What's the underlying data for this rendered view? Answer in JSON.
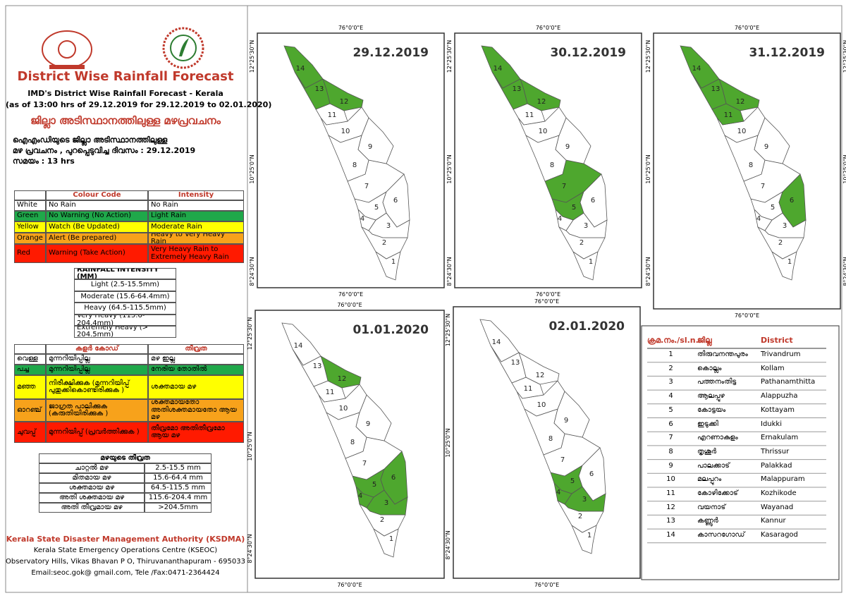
{
  "header": {
    "title": "District Wise Rainfall Forecast",
    "line1": "IMD's District Wise Rainfall Forecast - Kerala",
    "line2": "(as of 13:00 hrs of 29.12.2019  for 29.12.2019  to 02.01.2020)",
    "ml_title": "ജില്ലാ അടിസ്ഥാനത്തിലുള്ള മഴപ്രവചനം",
    "ml_para": [
      "ഐഎംഡിയുടെ ജില്ലാ   അടിസ്ഥാനത്തിലുള്ള",
      "മഴ പ്രവചനം , പുറപ്പെടുവിച്ച   ദിവസം : 29.12.2019",
      "സമയം : 13  hrs"
    ]
  },
  "colour_code": {
    "headers": [
      "Colour Code",
      "Intensity"
    ],
    "rows": [
      {
        "color": "#ffffff",
        "cells": [
          "White",
          "No Rain",
          "No Rain"
        ]
      },
      {
        "color": "#1fa84a",
        "cells": [
          "Green",
          "No Warning (No Action)",
          "Light Rain"
        ]
      },
      {
        "color": "#ffff00",
        "cells": [
          "Yellow",
          "Watch (Be Updated)",
          "Moderate Rain"
        ]
      },
      {
        "color": "#f7a21b",
        "cells": [
          "Orange",
          "Alert (Be prepared)",
          "Heavy to Very Heavy Rain"
        ]
      },
      {
        "color": "#ff1a00",
        "cells": [
          "Red",
          "Warning (Take Action)",
          "Very Heavy Rain to Extremely Heavy Rain"
        ]
      }
    ]
  },
  "rainfall_intensity": {
    "title": "RAINFALL INTENSITY (MM)",
    "rows": [
      "Light (2.5-15.5mm)",
      "Moderate (15.6-64.4mm)",
      "Heavy (64.5-115.5mm)",
      "Very Heavy (115.6-204.4mm)",
      "Extremely Heavy (> 204.5mm)"
    ]
  },
  "ml_colour_code": {
    "headers": [
      "കളർ കോഡ്",
      "തീവ്രത"
    ],
    "rows": [
      {
        "color": "#ffffff",
        "cells": [
          "വെള്ള",
          "മുന്നറിയിപ്പില്ല",
          "മഴ ഇല്ല"
        ]
      },
      {
        "color": "#1fa84a",
        "cells": [
          "പച്ച",
          "മുന്നറിയിപ്പില്ല",
          "നേരിയ തോതിൽ"
        ]
      },
      {
        "color": "#ffff00",
        "cells": [
          "മഞ്ഞ",
          "നിരീക്ഷിക്കുക (മുന്നറിയിപ്പ് പുതുക്കികൊണ്ടിരിക്കുക )",
          "ശക്തമായ മഴ"
        ]
      },
      {
        "color": "#f7a21b",
        "cells": [
          "ഓറഞ്ച്",
          "ജാഗ്രത പാലിക്കുക (കരുതിയിരിക്കുക )",
          "ശക്തമായതോ അതിശക്തമായതോ ആയ മഴ"
        ]
      },
      {
        "color": "#ff1a00",
        "cells": [
          "ചുവപ്പ്",
          "മുന്നറിയിപ്പ് (പ്രവർത്തിക്കുക )",
          "തീവ്രമോ അതിതീവ്രമോ ആയ മഴ"
        ]
      }
    ]
  },
  "ml_intensity": {
    "title": "മഴയുടെ തീവ്രത",
    "rows": [
      [
        "ചാറ്റൽ മഴ",
        "2.5-15.5 mm"
      ],
      [
        "മിതമായ മഴ",
        "15.6-64.4 mm"
      ],
      [
        "ശക്തമായ മഴ",
        "64.5-115.5 mm"
      ],
      [
        "അതി ശക്തമായ മഴ",
        "115.6-204.4 mm"
      ],
      [
        "അതി തീവ്രമായ മഴ",
        ">204.5mm"
      ]
    ]
  },
  "footer": {
    "org": "Kerala State Disaster Management Authority (KSDMA)",
    "lines": [
      "Kerala State Emergency Operations Centre (KSEOC)",
      "Observatory Hills, Vikas Bhavan P O, Thiruvananthapuram - 695033",
      "Email:seoc.gok@ gmail.com, Tele /Fax:0471-2364424"
    ]
  },
  "map_axes": {
    "lon": "76°0'0\"E",
    "lat": [
      "12°25'30\"N",
      "10°25'0\"N",
      "8°24'30\"N"
    ]
  },
  "map_color": "#4ea72e",
  "maps": [
    {
      "date": "29.12.2019",
      "green": [
        14,
        13,
        12
      ]
    },
    {
      "date": "30.12.2019",
      "green": [
        14,
        13,
        12,
        7,
        5
      ]
    },
    {
      "date": "31.12.2019",
      "green": [
        14,
        13,
        12,
        11,
        6
      ]
    },
    {
      "date": "01.01.2020",
      "green": [
        12,
        6,
        5,
        4,
        3
      ]
    },
    {
      "date": "02.01.2020",
      "green": [
        5,
        4,
        3
      ]
    }
  ],
  "district_table": {
    "headers": [
      "ക്രമ.നം./sl.n.",
      "ജില്ല",
      "District"
    ],
    "rows": [
      [
        "1",
        "തിരുവനന്തപുരം",
        "Trivandrum"
      ],
      [
        "2",
        "കൊല്ലം",
        "Kollam"
      ],
      [
        "3",
        "പത്തനംതിട്ട",
        "Pathanamthitta"
      ],
      [
        "4",
        "ആലപ്പുഴ",
        "Alappuzha"
      ],
      [
        "5",
        "കോട്ടയം",
        "Kottayam"
      ],
      [
        "6",
        "ഇടുക്കി",
        "Idukki"
      ],
      [
        "7",
        "എറണാകുളം",
        "Ernakulam"
      ],
      [
        "8",
        "തൃശൂർ",
        "Thrissur"
      ],
      [
        "9",
        "പാലക്കാട്",
        "Palakkad"
      ],
      [
        "10",
        "മലപ്പുറം",
        "Malappuram"
      ],
      [
        "11",
        "കോഴിക്കോട്",
        "Kozhikode"
      ],
      [
        "12",
        "വയനാട്",
        "Wayanad"
      ],
      [
        "13",
        "കണ്ണൂർ",
        "Kannur"
      ],
      [
        "14",
        "കാസറഗോഡ്",
        "Kasaragod"
      ]
    ]
  }
}
